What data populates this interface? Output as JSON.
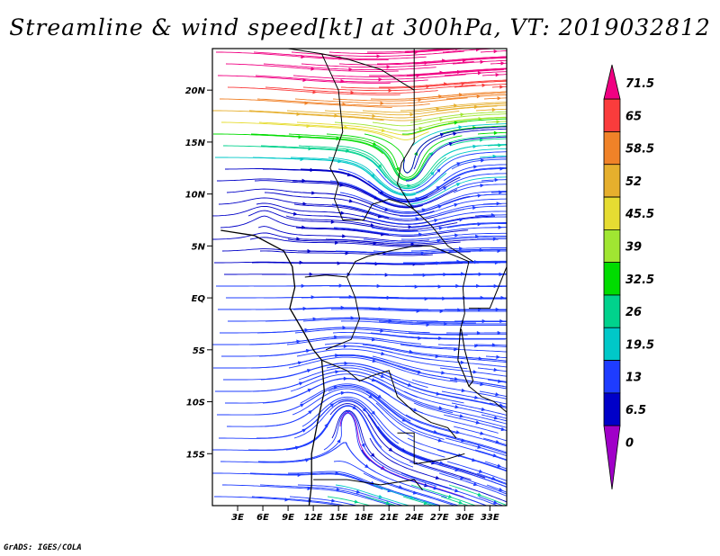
{
  "title": "Streamline & wind speed[kt] at 300hPa, VT: 2019032812",
  "footer": "GrADS: IGES/COLA",
  "map": {
    "lon_range": [
      0,
      35
    ],
    "lat_range": [
      -20,
      24
    ],
    "y_ticks": [
      {
        "label": "20N",
        "lat": 20
      },
      {
        "label": "15N",
        "lat": 15
      },
      {
        "label": "10N",
        "lat": 10
      },
      {
        "label": "5N",
        "lat": 5
      },
      {
        "label": "EQ",
        "lat": 0
      },
      {
        "label": "5S",
        "lat": -5
      },
      {
        "label": "10S",
        "lat": -10
      },
      {
        "label": "15S",
        "lat": -15
      }
    ],
    "x_ticks": [
      {
        "label": "3E",
        "lon": 3
      },
      {
        "label": "6E",
        "lon": 6
      },
      {
        "label": "9E",
        "lon": 9
      },
      {
        "label": "12E",
        "lon": 12
      },
      {
        "label": "15E",
        "lon": 15
      },
      {
        "label": "18E",
        "lon": 18
      },
      {
        "label": "21E",
        "lon": 21
      },
      {
        "label": "24E",
        "lon": 24
      },
      {
        "label": "27E",
        "lon": 27
      },
      {
        "label": "30E",
        "lon": 30
      },
      {
        "label": "33E",
        "lon": 33
      }
    ]
  },
  "colorbar": {
    "labels": [
      "71.5",
      "65",
      "58.5",
      "52",
      "45.5",
      "39",
      "32.5",
      "26",
      "19.5",
      "13",
      "6.5",
      "0"
    ],
    "colors": [
      "#f00082",
      "#fa3c3c",
      "#f08228",
      "#e6af2d",
      "#e6dc32",
      "#a0e632",
      "#00dc00",
      "#00d28c",
      "#00c8c8",
      "#1e3cff",
      "#0000c8",
      "#a000c8"
    ]
  }
}
